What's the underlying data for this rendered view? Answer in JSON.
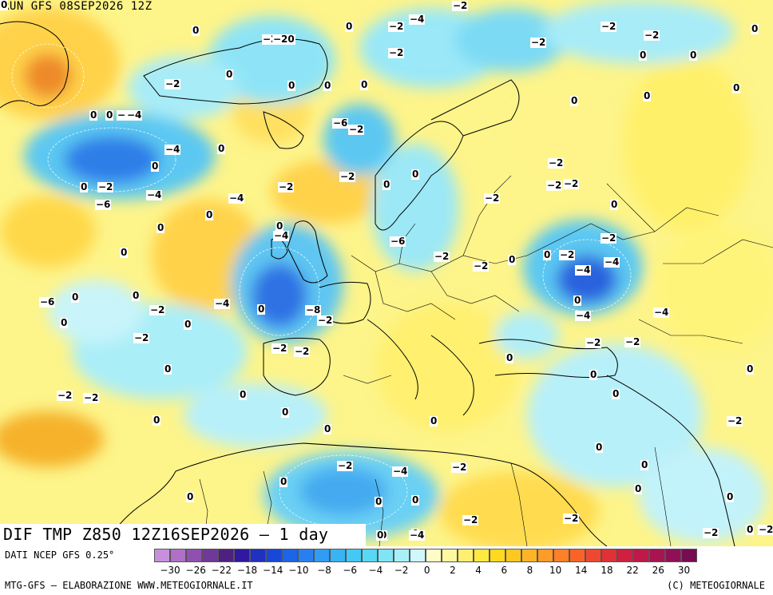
{
  "run_label": "RUN GFS 08SEP2026 12Z",
  "title": "DIF TMP Z850 12Z16SEP2026 – 1 day",
  "footer": {
    "source": "DATI NCEP GFS 0.25°",
    "credit_left": "MTG-GFS – ELABORAZIONE WWW.METEOGIORNALE.IT",
    "credit_right": "(C) METEOGIORNALE"
  },
  "colors": {
    "ocean_base": "#fdf7b8",
    "cold_light": "#bff3fb",
    "cold_mid": "#6fdcf3",
    "cold_strong": "#3aa4ef",
    "cold_deep": "#2b66e0",
    "warm_light": "#fff27a",
    "warm_mid": "#ffd84a",
    "warm_strong": "#f5b31e",
    "warm_deep": "#ec7a20"
  },
  "legend": {
    "swatch_colors": [
      "#c890dc",
      "#b070c8",
      "#9050b0",
      "#703898",
      "#502080",
      "#3018a0",
      "#2030c0",
      "#1848d8",
      "#1c64e8",
      "#2880f0",
      "#309cf4",
      "#38b4f4",
      "#44c8f4",
      "#58d8f4",
      "#80e4f4",
      "#a8f0f8",
      "#d0f8fc",
      "#fffcc8",
      "#fff8a0",
      "#fff070",
      "#ffe840",
      "#ffd820",
      "#ffc820",
      "#ffb428",
      "#ff9c28",
      "#ff8028",
      "#f86428",
      "#f04830",
      "#e03038",
      "#d02040",
      "#c01848",
      "#a81450",
      "#901058",
      "#780c50"
    ],
    "tick_labels": [
      "−30",
      "−26",
      "−22",
      "−18",
      "−14",
      "−10",
      "−8",
      "−6",
      "−4",
      "−2",
      "0",
      "2",
      "4",
      "6",
      "8",
      "10",
      "14",
      "18",
      "22",
      "26",
      "30"
    ]
  },
  "contour_labels": [
    {
      "text": "0"
    },
    {
      "text": "−2"
    },
    {
      "text": "−4"
    },
    {
      "text": "−2"
    },
    {
      "text": "−2"
    },
    {
      "text": "−20"
    },
    {
      "text": "−2"
    },
    {
      "text": "−2"
    },
    {
      "text": "−2"
    },
    {
      "text": "−2"
    },
    {
      "text": "0"
    },
    {
      "text": "0"
    },
    {
      "text": "0"
    },
    {
      "text": "0"
    },
    {
      "text": "0"
    },
    {
      "text": "0"
    },
    {
      "text": "0"
    },
    {
      "text": "−2"
    },
    {
      "text": "0"
    },
    {
      "text": "0"
    },
    {
      "text": "0"
    },
    {
      "text": "0"
    },
    {
      "text": "0"
    },
    {
      "text": "0"
    },
    {
      "text": "−2"
    },
    {
      "text": "−4"
    },
    {
      "text": "−6"
    },
    {
      "text": "−2"
    },
    {
      "text": "−4"
    },
    {
      "text": "0"
    },
    {
      "text": "0"
    },
    {
      "text": "−2"
    },
    {
      "text": "0"
    },
    {
      "text": "−2"
    },
    {
      "text": "−2"
    },
    {
      "text": "0"
    },
    {
      "text": "−2"
    },
    {
      "text": "0"
    },
    {
      "text": "0"
    },
    {
      "text": "−2"
    },
    {
      "text": "−6"
    },
    {
      "text": "−4"
    },
    {
      "text": "−4"
    },
    {
      "text": "−2"
    },
    {
      "text": "0"
    },
    {
      "text": "0"
    },
    {
      "text": "0"
    },
    {
      "text": "−2"
    },
    {
      "text": "0"
    },
    {
      "text": "−4"
    },
    {
      "text": "−6"
    },
    {
      "text": "−2"
    },
    {
      "text": "−2"
    },
    {
      "text": "−2"
    },
    {
      "text": "0"
    },
    {
      "text": "0"
    },
    {
      "text": "−2"
    },
    {
      "text": "−4"
    },
    {
      "text": "−4"
    },
    {
      "text": "−6"
    },
    {
      "text": "0"
    },
    {
      "text": "0"
    },
    {
      "text": "−4"
    },
    {
      "text": "0"
    },
    {
      "text": "−8"
    },
    {
      "text": "−2"
    },
    {
      "text": "−2"
    },
    {
      "text": "0"
    },
    {
      "text": "0"
    },
    {
      "text": "−2"
    },
    {
      "text": "0"
    },
    {
      "text": "−4"
    },
    {
      "text": "−2"
    },
    {
      "text": "−2"
    },
    {
      "text": "−2"
    },
    {
      "text": "−2"
    },
    {
      "text": "−4"
    },
    {
      "text": "0"
    },
    {
      "text": "0"
    },
    {
      "text": "−2"
    },
    {
      "text": "−2"
    },
    {
      "text": "0"
    },
    {
      "text": "0"
    },
    {
      "text": "0"
    },
    {
      "text": "0"
    },
    {
      "text": "0"
    },
    {
      "text": "0"
    },
    {
      "text": "0"
    },
    {
      "text": "−2"
    },
    {
      "text": "0"
    },
    {
      "text": "0"
    },
    {
      "text": "0"
    },
    {
      "text": "−2"
    },
    {
      "text": "−4"
    },
    {
      "text": "−2"
    },
    {
      "text": "0"
    },
    {
      "text": "0"
    },
    {
      "text": "0"
    },
    {
      "text": "0"
    },
    {
      "text": "0"
    },
    {
      "text": "0"
    },
    {
      "text": "−2"
    },
    {
      "text": "0"
    },
    {
      "text": "−2"
    },
    {
      "text": "0"
    },
    {
      "text": "−2"
    },
    {
      "text": "0"
    },
    {
      "text": "0"
    },
    {
      "text": "−4"
    },
    {
      "text": "−2"
    },
    {
      "text": "0"
    }
  ]
}
